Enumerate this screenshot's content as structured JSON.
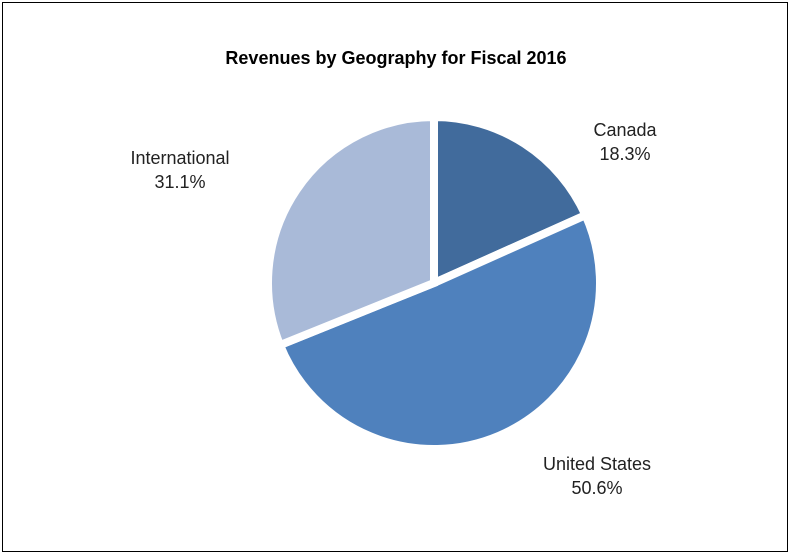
{
  "chart_data": {
    "type": "pie",
    "title": "Revenues by Geography for Fiscal 2016",
    "categories": [
      "Canada",
      "United States",
      "International"
    ],
    "values": [
      18.3,
      50.6,
      31.1
    ],
    "value_labels": [
      "18.3%",
      "50.6%",
      "31.1%"
    ],
    "colors": [
      "#416b9c",
      "#4f81bd",
      "#a9bad8"
    ]
  }
}
